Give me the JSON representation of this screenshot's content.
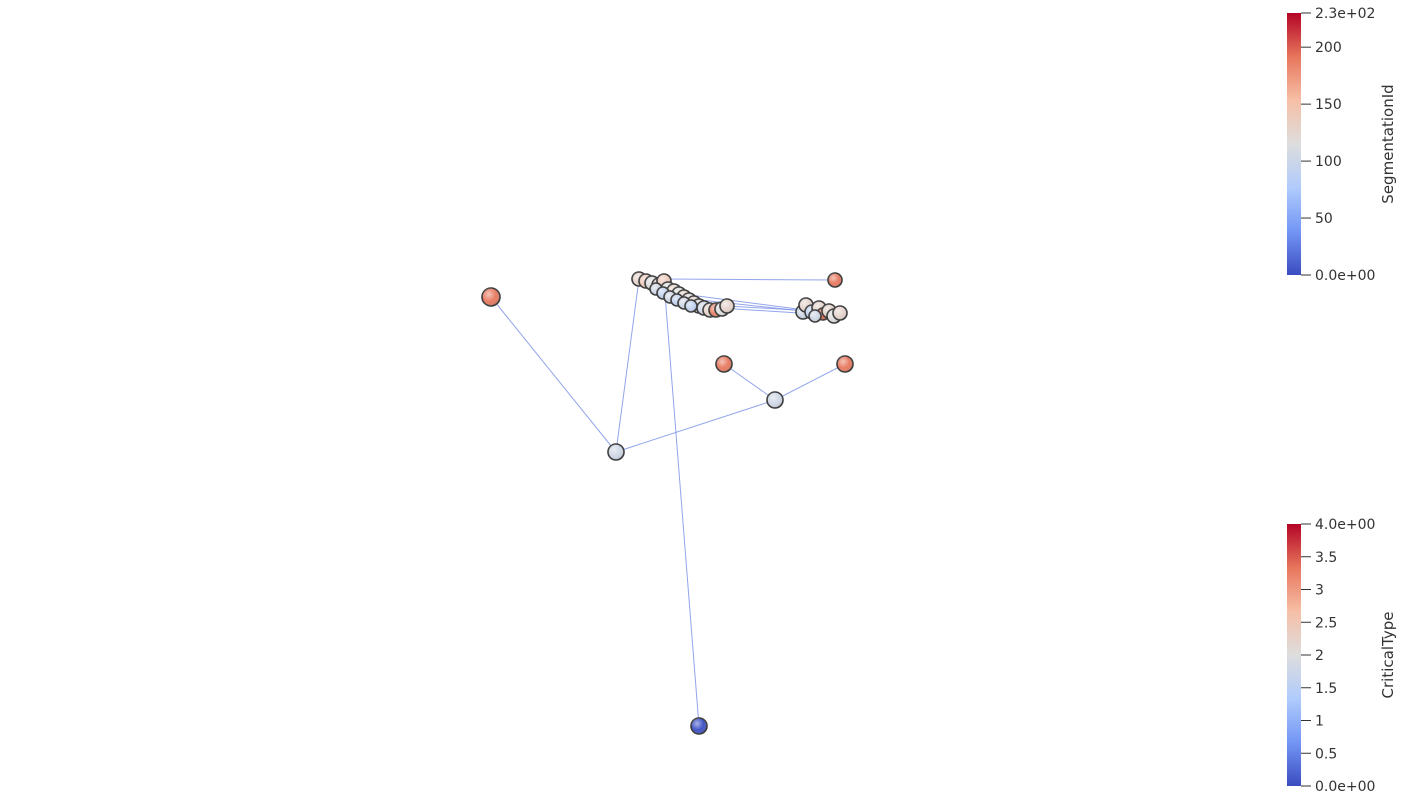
{
  "scene": {
    "background": "#ffffff",
    "edge_color": "#7f95e8",
    "outline_color": "#3a3a3a"
  },
  "colormap": {
    "name": "coolwarm",
    "stops": [
      "#3b4cc0",
      "#7396f5",
      "#b0cbfc",
      "#dddddd",
      "#f6bfa6",
      "#e7765c",
      "#b40426"
    ]
  },
  "legends": {
    "segmentation": {
      "title": "SegmentationId",
      "min": 0,
      "max": 230,
      "ticks": [
        {
          "value": 230,
          "label": "2.3e+02"
        },
        {
          "value": 200,
          "label": "200"
        },
        {
          "value": 150,
          "label": "150"
        },
        {
          "value": 100,
          "label": "100"
        },
        {
          "value": 50,
          "label": "50"
        },
        {
          "value": 0,
          "label": "0.0e+00"
        }
      ]
    },
    "critical": {
      "title": "CriticalType",
      "min": 0,
      "max": 4,
      "ticks": [
        {
          "value": 4,
          "label": "4.0e+00"
        },
        {
          "value": 3.5,
          "label": "3.5"
        },
        {
          "value": 3,
          "label": "3"
        },
        {
          "value": 2.5,
          "label": "2.5"
        },
        {
          "value": 2,
          "label": "2"
        },
        {
          "value": 1.5,
          "label": "1.5"
        },
        {
          "value": 1,
          "label": "1"
        },
        {
          "value": 0.5,
          "label": "0.5"
        },
        {
          "value": 0,
          "label": "0.0e+00"
        }
      ]
    }
  }
}
